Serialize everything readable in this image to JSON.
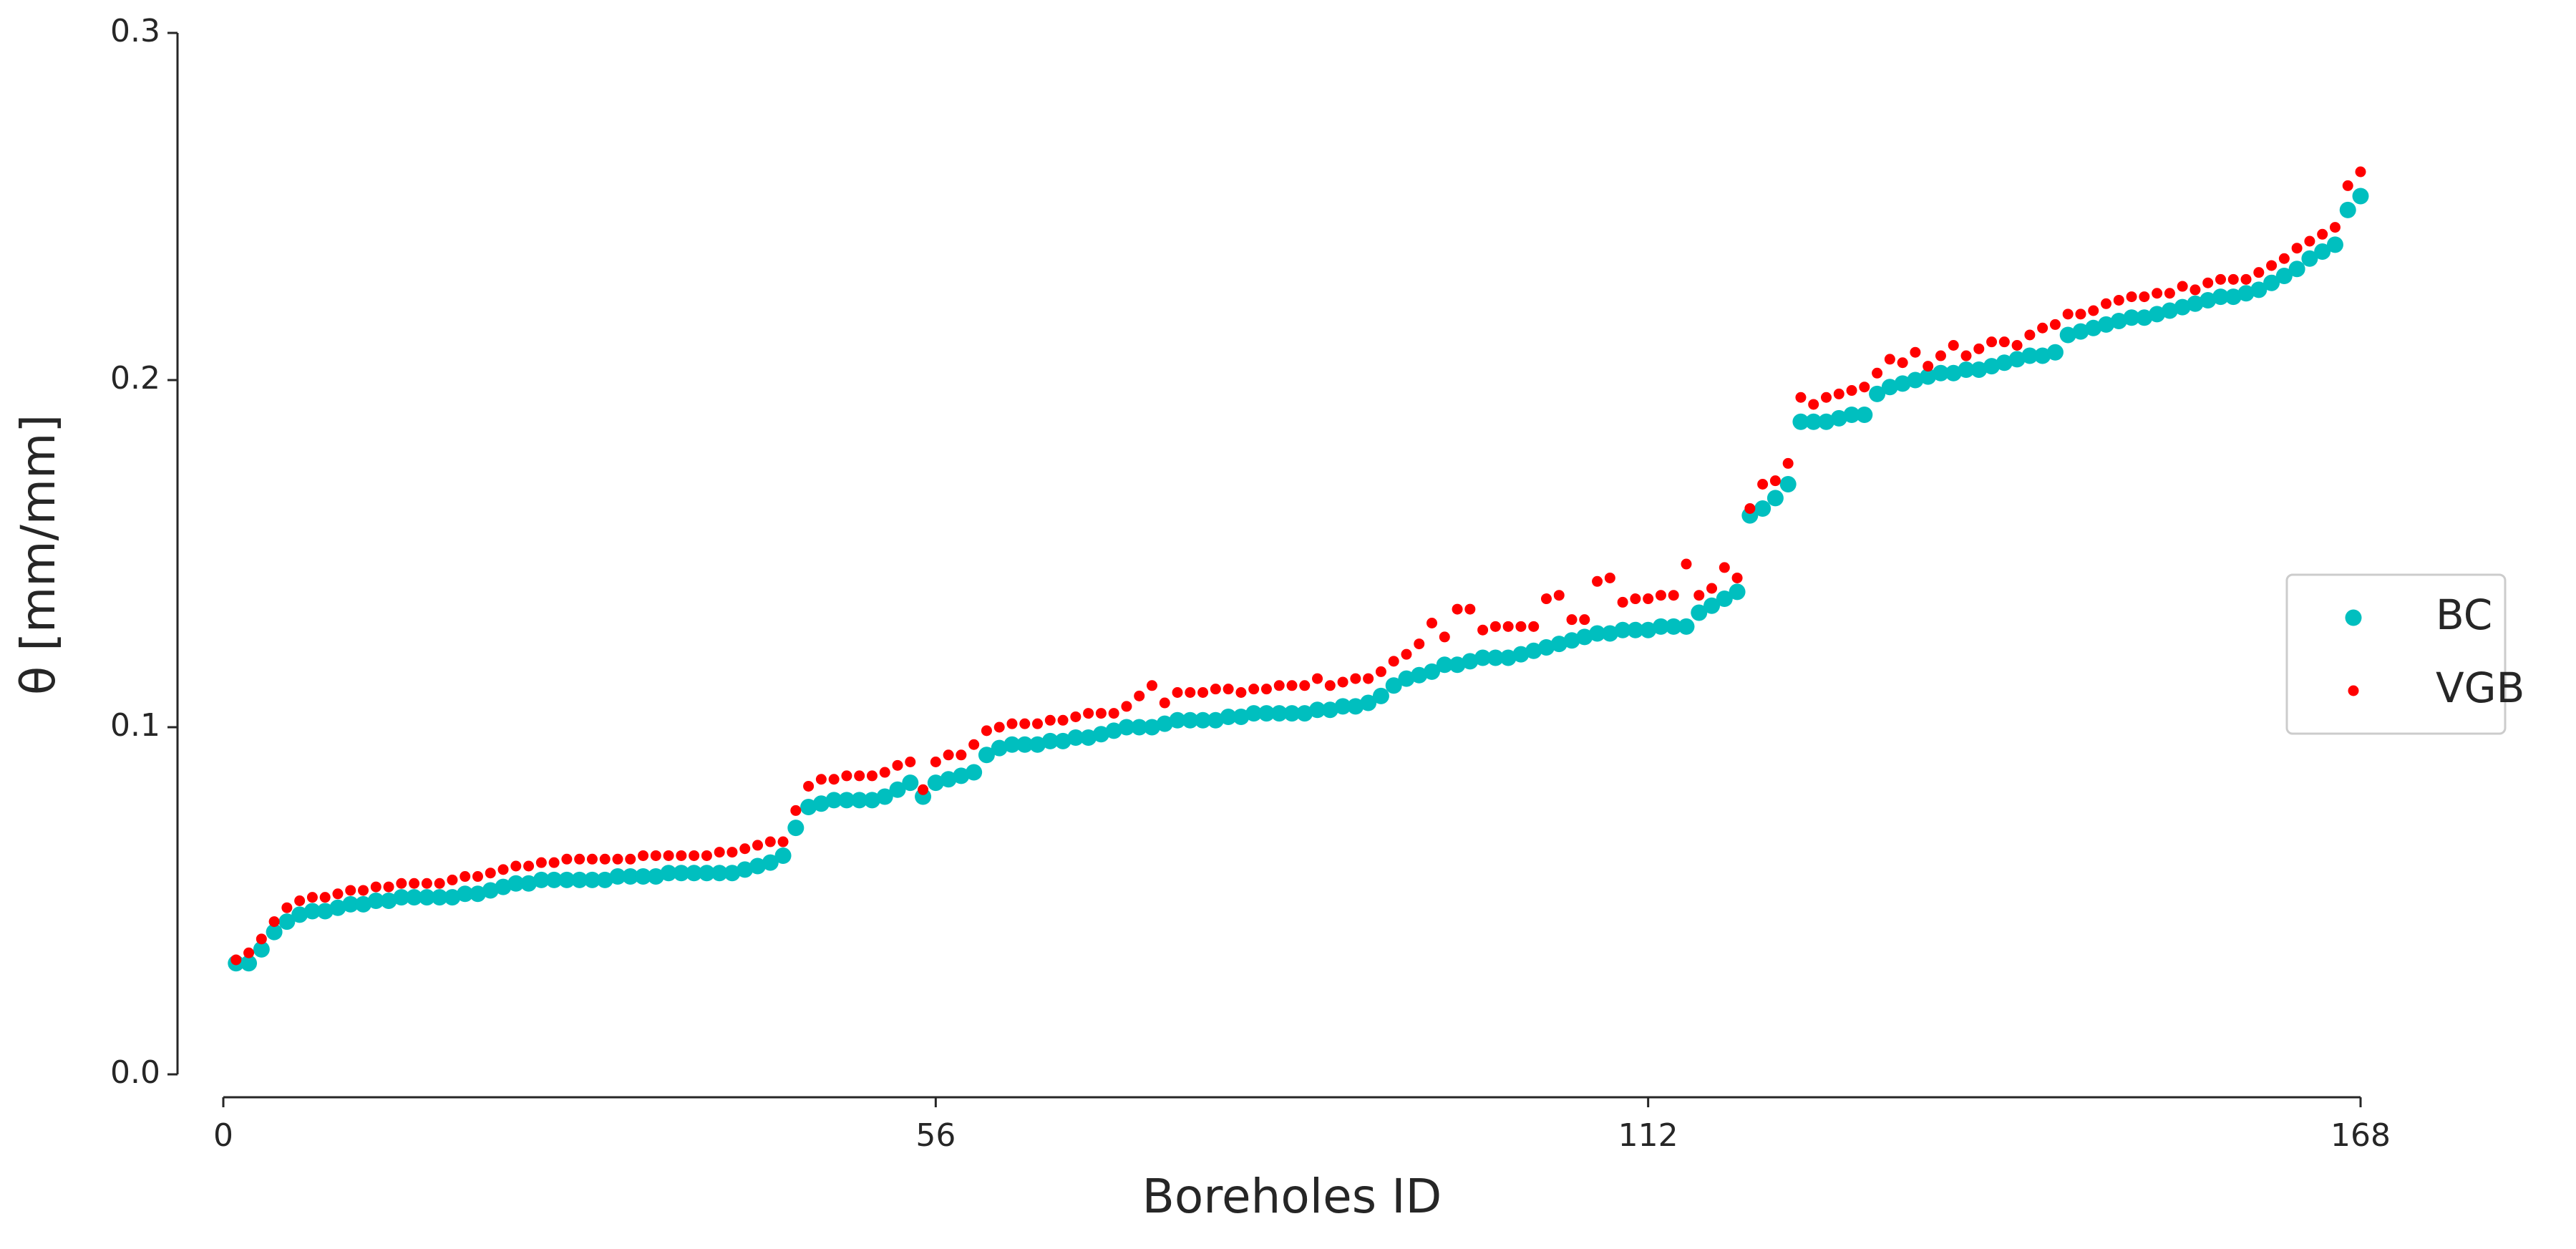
{
  "chart_data": {
    "type": "scatter",
    "xlabel": "Boreholes ID",
    "ylabel": "θ [mm/mm]",
    "xlim": [
      0,
      168
    ],
    "xticks": [
      0,
      56,
      112,
      168
    ],
    "ylim": [
      0,
      0.3
    ],
    "yticks": [
      {
        "value": 0,
        "label": "0.0"
      },
      0.1,
      0.2,
      0.3
    ],
    "legend": "right",
    "x": [
      1,
      2,
      3,
      4,
      5,
      6,
      7,
      8,
      9,
      10,
      11,
      12,
      13,
      14,
      15,
      16,
      17,
      18,
      19,
      20,
      21,
      22,
      23,
      24,
      25,
      26,
      27,
      28,
      29,
      30,
      31,
      32,
      33,
      34,
      35,
      36,
      37,
      38,
      39,
      40,
      41,
      42,
      43,
      44,
      45,
      46,
      47,
      48,
      49,
      50,
      51,
      52,
      53,
      54,
      55,
      56,
      57,
      58,
      59,
      60,
      61,
      62,
      63,
      64,
      65,
      66,
      67,
      68,
      69,
      70,
      71,
      72,
      73,
      74,
      75,
      76,
      77,
      78,
      79,
      80,
      81,
      82,
      83,
      84,
      85,
      86,
      87,
      88,
      89,
      90,
      91,
      92,
      93,
      94,
      95,
      96,
      97,
      98,
      99,
      100,
      101,
      102,
      103,
      104,
      105,
      106,
      107,
      108,
      109,
      110,
      111,
      112,
      113,
      114,
      115,
      116,
      117,
      118,
      119,
      120,
      121,
      122,
      123,
      124,
      125,
      126,
      127,
      128,
      129,
      130,
      131,
      132,
      133,
      134,
      135,
      136,
      137,
      138,
      139,
      140,
      141,
      142,
      143,
      144,
      145,
      146,
      147,
      148,
      149,
      150,
      151,
      152,
      153,
      154,
      155,
      156,
      157,
      158,
      159,
      160,
      161,
      162,
      163,
      164,
      165,
      166,
      167,
      168
    ],
    "series": [
      {
        "name": "BC",
        "color": "#00bfbf",
        "values": [
          0.032,
          0.032,
          0.036,
          0.041,
          0.044,
          0.046,
          0.047,
          0.047,
          0.048,
          0.049,
          0.049,
          0.05,
          0.05,
          0.051,
          0.051,
          0.051,
          0.051,
          0.051,
          0.052,
          0.052,
          0.053,
          0.054,
          0.055,
          0.055,
          0.056,
          0.056,
          0.056,
          0.056,
          0.056,
          0.056,
          0.057,
          0.057,
          0.057,
          0.057,
          0.058,
          0.058,
          0.058,
          0.058,
          0.058,
          0.058,
          0.059,
          0.06,
          0.061,
          0.063,
          0.071,
          0.077,
          0.078,
          0.079,
          0.079,
          0.079,
          0.079,
          0.08,
          0.082,
          0.084,
          0.08,
          0.084,
          0.085,
          0.086,
          0.087,
          0.092,
          0.094,
          0.095,
          0.095,
          0.095,
          0.096,
          0.096,
          0.097,
          0.097,
          0.098,
          0.099,
          0.1,
          0.1,
          0.1,
          0.101,
          0.102,
          0.102,
          0.102,
          0.102,
          0.103,
          0.103,
          0.104,
          0.104,
          0.104,
          0.104,
          0.104,
          0.105,
          0.105,
          0.106,
          0.106,
          0.107,
          0.109,
          0.112,
          0.114,
          0.115,
          0.116,
          0.118,
          0.118,
          0.119,
          0.12,
          0.12,
          0.12,
          0.121,
          0.122,
          0.123,
          0.124,
          0.125,
          0.126,
          0.127,
          0.127,
          0.128,
          0.128,
          0.128,
          0.129,
          0.129,
          0.129,
          0.133,
          0.135,
          0.137,
          0.139,
          0.161,
          0.163,
          0.166,
          0.17,
          0.188,
          0.188,
          0.188,
          0.189,
          0.19,
          0.19,
          0.196,
          0.198,
          0.199,
          0.2,
          0.201,
          0.202,
          0.202,
          0.203,
          0.203,
          0.204,
          0.205,
          0.206,
          0.207,
          0.207,
          0.208,
          0.213,
          0.214,
          0.215,
          0.216,
          0.217,
          0.218,
          0.218,
          0.219,
          0.22,
          0.221,
          0.222,
          0.223,
          0.224,
          0.224,
          0.225,
          0.226,
          0.228,
          0.23,
          0.232,
          0.235,
          0.237,
          0.239,
          0.249,
          0.253
        ]
      },
      {
        "name": "VGB",
        "color": "#ff0000",
        "values": [
          0.033,
          0.035,
          0.039,
          0.044,
          0.048,
          0.05,
          0.051,
          0.051,
          0.052,
          0.053,
          0.053,
          0.054,
          0.054,
          0.055,
          0.055,
          0.055,
          0.055,
          0.056,
          0.057,
          0.057,
          0.058,
          0.059,
          0.06,
          0.06,
          0.061,
          0.061,
          0.062,
          0.062,
          0.062,
          0.062,
          0.062,
          0.062,
          0.063,
          0.063,
          0.063,
          0.063,
          0.063,
          0.063,
          0.064,
          0.064,
          0.065,
          0.066,
          0.067,
          0.067,
          0.076,
          0.083,
          0.085,
          0.085,
          0.086,
          0.086,
          0.086,
          0.087,
          0.089,
          0.09,
          0.082,
          0.09,
          0.092,
          0.092,
          0.095,
          0.099,
          0.1,
          0.101,
          0.101,
          0.101,
          0.102,
          0.102,
          0.103,
          0.104,
          0.104,
          0.104,
          0.106,
          0.109,
          0.112,
          0.107,
          0.11,
          0.11,
          0.11,
          0.111,
          0.111,
          0.11,
          0.111,
          0.111,
          0.112,
          0.112,
          0.112,
          0.114,
          0.112,
          0.113,
          0.114,
          0.114,
          0.116,
          0.119,
          0.121,
          0.124,
          0.13,
          0.126,
          0.134,
          0.134,
          0.128,
          0.129,
          0.129,
          0.129,
          0.129,
          0.137,
          0.138,
          0.131,
          0.131,
          0.142,
          0.143,
          0.136,
          0.137,
          0.137,
          0.138,
          0.138,
          0.147,
          0.138,
          0.14,
          0.146,
          0.143,
          0.163,
          0.17,
          0.171,
          0.176,
          0.195,
          0.193,
          0.195,
          0.196,
          0.197,
          0.198,
          0.202,
          0.206,
          0.205,
          0.208,
          0.204,
          0.207,
          0.21,
          0.207,
          0.209,
          0.211,
          0.211,
          0.21,
          0.213,
          0.215,
          0.216,
          0.219,
          0.219,
          0.22,
          0.222,
          0.223,
          0.224,
          0.224,
          0.225,
          0.225,
          0.227,
          0.226,
          0.228,
          0.229,
          0.229,
          0.229,
          0.231,
          0.233,
          0.235,
          0.238,
          0.24,
          0.242,
          0.244,
          0.256,
          0.26
        ]
      }
    ]
  }
}
